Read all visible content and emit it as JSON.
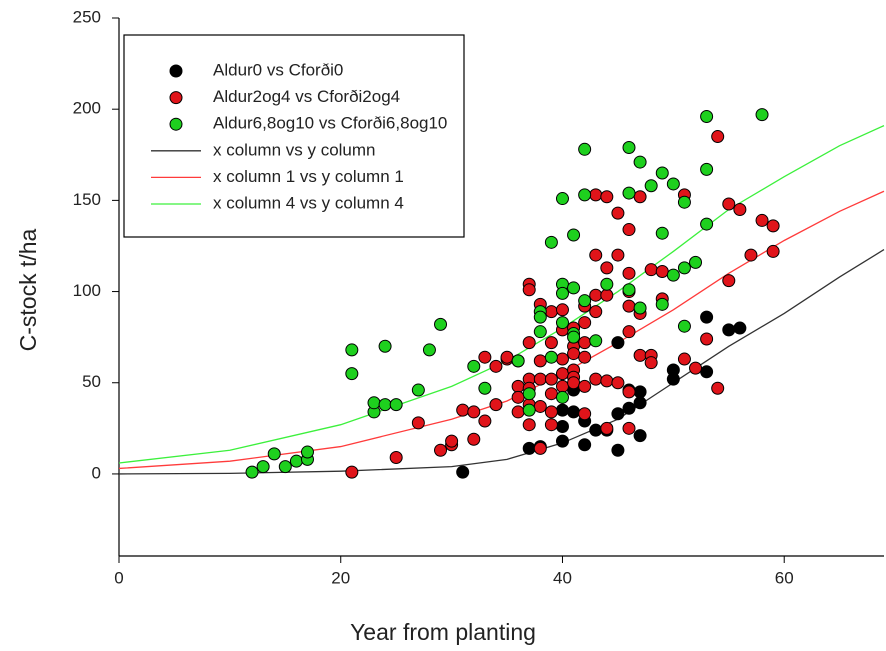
{
  "chart_data": {
    "type": "scatter",
    "xlabel": "Year from planting",
    "ylabel": "C-stock t/ha",
    "xlim": [
      0,
      69
    ],
    "xticks": [
      0,
      20,
      40,
      60
    ],
    "ylim": [
      -45,
      250
    ],
    "yticks": [
      0,
      50,
      100,
      150,
      200,
      250
    ],
    "legend": "upper left",
    "series": [
      {
        "name": "Aldur0 vs Cforði0",
        "mode": "markers",
        "color": "#000000",
        "x": [
          31,
          37,
          38,
          40,
          40,
          40,
          41,
          41,
          42,
          42,
          43,
          44,
          45,
          45,
          45,
          46,
          46,
          47,
          47,
          47,
          50,
          50,
          53,
          53,
          55,
          56
        ],
        "values": [
          1,
          14,
          15,
          18,
          26,
          35,
          34,
          46,
          29,
          16,
          24,
          24,
          13,
          33,
          72,
          36,
          46,
          45,
          39,
          21,
          52,
          57,
          56,
          86,
          79,
          80
        ]
      },
      {
        "name": "Aldur2og4 vs Cforði2og4",
        "mode": "markers",
        "color": "#e0141a",
        "x": [
          21,
          25,
          27,
          29,
          30,
          30,
          31,
          32,
          32,
          33,
          33,
          34,
          34,
          35,
          35,
          36,
          36,
          36,
          36,
          37,
          37,
          37,
          37,
          37,
          37,
          37,
          38,
          38,
          38,
          38,
          38,
          39,
          39,
          39,
          39,
          39,
          39,
          40,
          40,
          40,
          40,
          40,
          41,
          41,
          41,
          41,
          41,
          41,
          42,
          42,
          42,
          42,
          42,
          42,
          43,
          43,
          43,
          43,
          43,
          44,
          44,
          44,
          44,
          44,
          45,
          45,
          45,
          46,
          46,
          46,
          46,
          46,
          46,
          46,
          47,
          47,
          47,
          48,
          48,
          48,
          49,
          49,
          51,
          51,
          52,
          53,
          54,
          54,
          55,
          55,
          56,
          57,
          58,
          59,
          59
        ],
        "values": [
          1,
          9,
          28,
          13,
          16,
          18,
          35,
          34,
          19,
          64,
          29,
          59,
          38,
          63,
          64,
          62,
          34,
          48,
          42,
          104,
          101,
          72,
          52,
          47,
          38,
          27,
          93,
          62,
          52,
          37,
          14,
          89,
          72,
          52,
          44,
          34,
          27,
          90,
          79,
          63,
          55,
          48,
          80,
          70,
          66,
          57,
          53,
          50,
          92,
          83,
          72,
          64,
          48,
          33,
          153,
          120,
          98,
          89,
          52,
          152,
          113,
          98,
          51,
          25,
          143,
          120,
          50,
          134,
          110,
          100,
          92,
          78,
          45,
          25,
          152,
          88,
          65,
          112,
          65,
          61,
          111,
          96,
          153,
          63,
          58,
          74,
          185,
          47,
          148,
          106,
          145,
          120,
          139,
          136,
          122
        ]
      },
      {
        "name": "Aldur6,8og10 vs Cforði6,8og10",
        "mode": "markers",
        "color": "#1ed01e",
        "x": [
          12,
          13,
          14,
          15,
          16,
          17,
          17,
          21,
          21,
          23,
          23,
          24,
          24,
          25,
          27,
          28,
          29,
          32,
          33,
          36,
          37,
          37,
          38,
          38,
          38,
          39,
          39,
          40,
          40,
          40,
          40,
          40,
          41,
          41,
          41,
          41,
          42,
          42,
          42,
          43,
          44,
          46,
          46,
          46,
          47,
          47,
          48,
          49,
          49,
          49,
          50,
          50,
          51,
          51,
          51,
          52,
          53,
          53,
          53,
          58
        ],
        "values": [
          1,
          4,
          11,
          4,
          7,
          8,
          12,
          55,
          68,
          34,
          39,
          38,
          70,
          38,
          46,
          68,
          82,
          59,
          47,
          62,
          35,
          44,
          89,
          86,
          78,
          127,
          64,
          151,
          104,
          99,
          83,
          42,
          131,
          102,
          77,
          75,
          178,
          153,
          95,
          73,
          104,
          179,
          154,
          101,
          171,
          91,
          158,
          165,
          132,
          93,
          159,
          109,
          149,
          113,
          81,
          116,
          196,
          167,
          137,
          197
        ]
      },
      {
        "name": "x column vs y column",
        "mode": "line",
        "color": "#333333",
        "x": [
          0,
          10,
          20,
          30,
          35,
          40,
          45,
          50,
          55,
          60,
          65,
          69
        ],
        "values": [
          0,
          0.3,
          1.5,
          4,
          8,
          17,
          30,
          50,
          70,
          88,
          108,
          123
        ]
      },
      {
        "name": "x column 1 vs y column 1",
        "mode": "line",
        "color": "#ff3b3b",
        "x": [
          0,
          10,
          20,
          30,
          35,
          40,
          45,
          50,
          55,
          60,
          65,
          69
        ],
        "values": [
          3,
          7,
          15,
          30,
          40,
          55,
          72,
          90,
          110,
          128,
          144,
          155
        ]
      },
      {
        "name": "x column 4 vs y column 4",
        "mode": "line",
        "color": "#3cf03c",
        "x": [
          0,
          10,
          20,
          30,
          35,
          40,
          45,
          50,
          55,
          60,
          65,
          69
        ],
        "values": [
          6,
          13,
          27,
          48,
          62,
          80,
          100,
          122,
          145,
          163,
          180,
          191
        ]
      }
    ]
  }
}
